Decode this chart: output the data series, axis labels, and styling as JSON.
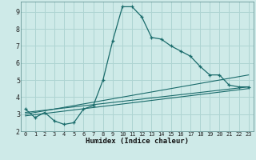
{
  "xlabel": "Humidex (Indice chaleur)",
  "background_color": "#ceeae8",
  "grid_color": "#aed4d2",
  "line_color": "#1a6b6b",
  "xlim": [
    -0.5,
    23.5
  ],
  "ylim": [
    2,
    9.6
  ],
  "xticks": [
    0,
    1,
    2,
    3,
    4,
    5,
    6,
    7,
    8,
    9,
    10,
    11,
    12,
    13,
    14,
    15,
    16,
    17,
    18,
    19,
    20,
    21,
    22,
    23
  ],
  "yticks": [
    2,
    3,
    4,
    5,
    6,
    7,
    8,
    9
  ],
  "series1_x": [
    0,
    1,
    2,
    3,
    4,
    5,
    6,
    7,
    8,
    9,
    10,
    11,
    12,
    13,
    14,
    15,
    16,
    17,
    18,
    19,
    20,
    21,
    22,
    23
  ],
  "series1_y": [
    3.3,
    2.8,
    3.1,
    2.6,
    2.4,
    2.5,
    3.3,
    3.5,
    5.0,
    7.3,
    9.3,
    9.3,
    8.7,
    7.5,
    7.4,
    7.0,
    6.7,
    6.4,
    5.8,
    5.3,
    5.3,
    4.7,
    4.6,
    4.6
  ],
  "series2_x": [
    0,
    23
  ],
  "series2_y": [
    3.1,
    4.6
  ],
  "series3_x": [
    0,
    23
  ],
  "series3_y": [
    3.0,
    5.3
  ],
  "series4_x": [
    0,
    23
  ],
  "series4_y": [
    2.9,
    4.5
  ]
}
